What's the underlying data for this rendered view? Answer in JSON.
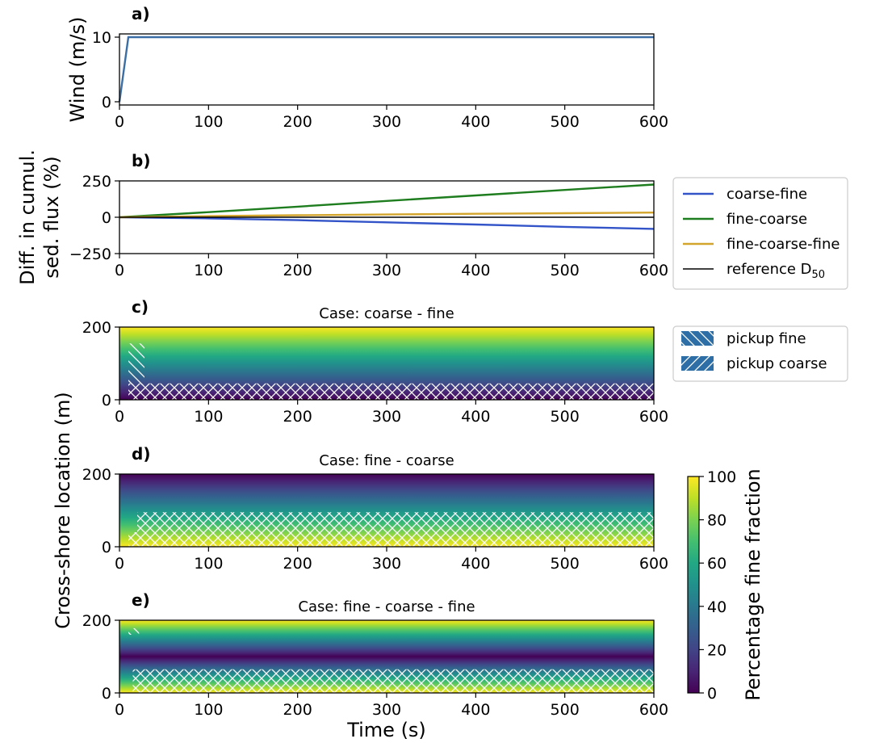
{
  "chart_data": [
    {
      "panel": "a)",
      "type": "line",
      "xlim": [
        0,
        600
      ],
      "ylim": [
        -0.5,
        10.5
      ],
      "xticks": [
        0,
        100,
        200,
        300,
        400,
        500,
        600
      ],
      "yticks": [
        0,
        10
      ],
      "ylabel": "Wind (m/s)",
      "series": [
        {
          "color": "#3a6ea5",
          "x": [
            0,
            10,
            600
          ],
          "y": [
            0,
            10,
            10
          ]
        }
      ]
    },
    {
      "panel": "b)",
      "type": "line",
      "xlim": [
        0,
        600
      ],
      "ylim": [
        -250,
        250
      ],
      "xticks": [
        0,
        100,
        200,
        300,
        400,
        500,
        600
      ],
      "ytick_labels": [
        "250",
        "0",
        "−250"
      ],
      "yticks": [
        250,
        0,
        -250
      ],
      "ylabel_lines": [
        "Diff. in cumul.",
        "sed. flux (%)"
      ],
      "legend_position": "outside-right",
      "series": [
        {
          "name": "coarse-fine",
          "color": "#3254c8",
          "x": [
            0,
            100,
            200,
            300,
            400,
            500,
            600
          ],
          "y": [
            0,
            -8,
            -20,
            -35,
            -50,
            -66,
            -80
          ]
        },
        {
          "name": "fine-coarse",
          "color": "#1e7d1e",
          "x": [
            0,
            100,
            200,
            300,
            400,
            500,
            600
          ],
          "y": [
            0,
            35,
            73,
            112,
            150,
            188,
            225
          ]
        },
        {
          "name": "fine-coarse-fine",
          "color": "#d4a52c",
          "x": [
            0,
            100,
            200,
            300,
            400,
            500,
            600
          ],
          "y": [
            0,
            8,
            14,
            19,
            24,
            28,
            32
          ]
        },
        {
          "name": "reference D",
          "name_subscript": "50",
          "color": "#000000",
          "x": [
            0,
            600
          ],
          "y": [
            0,
            0
          ]
        }
      ]
    },
    {
      "panel": "c)",
      "type": "heatmap",
      "title": "Case: coarse - fine",
      "xlim": [
        0,
        600
      ],
      "ylim": [
        0,
        200
      ],
      "xticks": [
        0,
        100,
        200,
        300,
        400,
        500,
        600
      ],
      "yticks": [
        0,
        200
      ],
      "fine_fraction_profile": {
        "y": [
          0,
          200
        ],
        "percent": [
          0,
          100
        ]
      },
      "hatch_regions": [
        {
          "type": "pickup coarse",
          "x": [
            10,
            600
          ],
          "y": [
            0,
            45
          ]
        },
        {
          "type": "pickup fine",
          "x": [
            10,
            28
          ],
          "y": [
            40,
            155
          ]
        }
      ]
    },
    {
      "panel": "d)",
      "type": "heatmap",
      "title": "Case: fine - coarse",
      "xlim": [
        0,
        600
      ],
      "ylim": [
        0,
        200
      ],
      "xticks": [
        0,
        100,
        200,
        300,
        400,
        500,
        600
      ],
      "yticks": [
        0,
        200
      ],
      "fine_fraction_profile": {
        "y": [
          0,
          200
        ],
        "percent": [
          100,
          0
        ]
      },
      "hatch_regions": [
        {
          "type": "pickup coarse",
          "x": [
            20,
            600
          ],
          "y": [
            0,
            95
          ]
        },
        {
          "type": "pickup coarse",
          "x": [
            10,
            20
          ],
          "y": [
            0,
            40
          ]
        }
      ]
    },
    {
      "panel": "e)",
      "type": "heatmap",
      "title": "Case: fine - coarse - fine",
      "xlim": [
        0,
        600
      ],
      "ylim": [
        0,
        200
      ],
      "xticks": [
        0,
        100,
        200,
        300,
        400,
        500,
        600
      ],
      "yticks": [
        0,
        200
      ],
      "fine_fraction_profile": {
        "y": [
          0,
          100,
          200
        ],
        "percent": [
          100,
          0,
          100
        ]
      },
      "hatch_regions": [
        {
          "type": "pickup coarse",
          "x": [
            15,
            600
          ],
          "y": [
            0,
            65
          ]
        },
        {
          "type": "pickup fine",
          "x": [
            10,
            22
          ],
          "y": [
            160,
            178
          ]
        }
      ]
    }
  ],
  "shared": {
    "xlabel": "Time (s)",
    "ylabel": "Cross-shore location (m)",
    "hatch_legend": [
      {
        "label": "pickup fine",
        "pattern": "backslash"
      },
      {
        "label": "pickup coarse",
        "pattern": "slash"
      }
    ],
    "colorbar": {
      "label": "Percentage fine fraction",
      "colormap": "viridis",
      "ticks": [
        0,
        20,
        40,
        60,
        80,
        100
      ]
    },
    "colors": {
      "hatch_swatch": "#2e6ea6",
      "axes": "#000000"
    }
  }
}
